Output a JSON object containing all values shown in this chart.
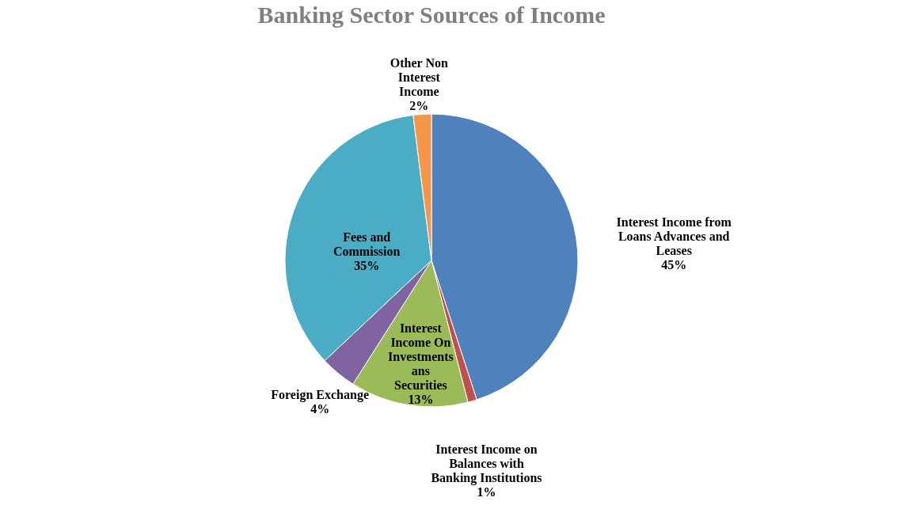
{
  "chart_data": {
    "type": "pie",
    "title": "Banking Sector Sources of Income",
    "categories": [
      "Interest Income from Loans Advances and Leases",
      "Interest Income on Balances with Banking Institutions",
      "Interest Income On Investments ans Securities",
      "Foreign Exchange",
      "Fees and Commission",
      "Other Non Interest Income"
    ],
    "values": [
      45,
      1,
      13,
      4,
      35,
      2
    ],
    "value_labels": [
      "45%",
      "1%",
      "13%",
      "4%",
      "35%",
      "2%"
    ],
    "colors": [
      "#4f81bd",
      "#c0504d",
      "#9bbb59",
      "#8064a2",
      "#4bacc6",
      "#f79646"
    ]
  }
}
